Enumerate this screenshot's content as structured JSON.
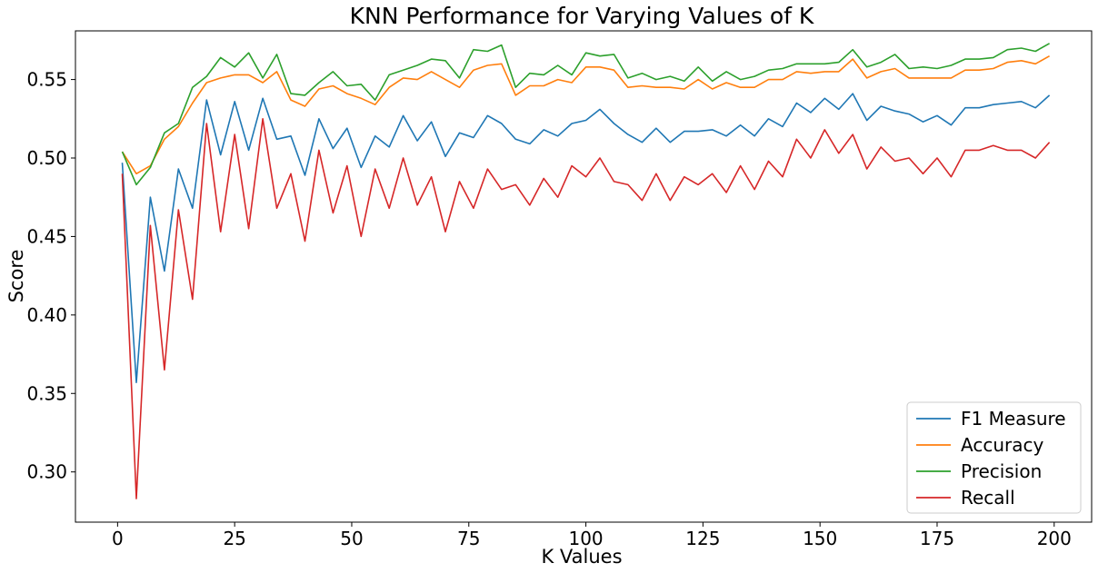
{
  "chart_data": {
    "type": "line",
    "title": "KNN Performance for Varying Values of K",
    "xlabel": "K Values",
    "ylabel": "Score",
    "xlim": [
      -9,
      208
    ],
    "ylim": [
      0.268,
      0.581
    ],
    "xticks": [
      0,
      25,
      50,
      75,
      100,
      125,
      150,
      175,
      200
    ],
    "yticks": [
      0.3,
      0.35,
      0.4,
      0.45,
      0.5,
      0.55
    ],
    "x": [
      1,
      4,
      7,
      10,
      13,
      16,
      19,
      22,
      25,
      28,
      31,
      34,
      37,
      40,
      43,
      46,
      49,
      52,
      55,
      58,
      61,
      64,
      67,
      70,
      73,
      76,
      79,
      82,
      85,
      88,
      91,
      94,
      97,
      100,
      103,
      106,
      109,
      112,
      115,
      118,
      121,
      124,
      127,
      130,
      133,
      136,
      139,
      142,
      145,
      148,
      151,
      154,
      157,
      160,
      163,
      166,
      169,
      172,
      175,
      178,
      181,
      184,
      187,
      190,
      193,
      196,
      199
    ],
    "legend_position": "lower right",
    "grid": false,
    "series": [
      {
        "name": "F1 Measure",
        "color": "#1f77b4",
        "values": [
          0.497,
          0.357,
          0.475,
          0.428,
          0.493,
          0.468,
          0.537,
          0.502,
          0.536,
          0.505,
          0.538,
          0.512,
          0.514,
          0.489,
          0.525,
          0.506,
          0.519,
          0.494,
          0.514,
          0.507,
          0.527,
          0.511,
          0.523,
          0.501,
          0.516,
          0.513,
          0.527,
          0.522,
          0.512,
          0.509,
          0.518,
          0.514,
          0.522,
          0.524,
          0.531,
          0.522,
          0.515,
          0.51,
          0.519,
          0.51,
          0.517,
          0.517,
          0.518,
          0.514,
          0.521,
          0.514,
          0.525,
          0.52,
          0.535,
          0.529,
          0.538,
          0.531,
          0.541,
          0.524,
          0.533,
          0.53,
          0.528,
          0.523,
          0.527,
          0.521,
          0.532,
          0.532,
          0.534,
          0.535,
          0.536,
          0.532,
          0.54
        ]
      },
      {
        "name": "Accuracy",
        "color": "#ff7f0e",
        "values": [
          0.504,
          0.49,
          0.495,
          0.512,
          0.52,
          0.535,
          0.548,
          0.551,
          0.553,
          0.553,
          0.548,
          0.555,
          0.537,
          0.533,
          0.544,
          0.546,
          0.541,
          0.538,
          0.534,
          0.545,
          0.551,
          0.55,
          0.555,
          0.55,
          0.545,
          0.556,
          0.559,
          0.56,
          0.54,
          0.546,
          0.546,
          0.55,
          0.548,
          0.558,
          0.558,
          0.556,
          0.545,
          0.546,
          0.545,
          0.545,
          0.544,
          0.55,
          0.544,
          0.548,
          0.545,
          0.545,
          0.55,
          0.55,
          0.555,
          0.554,
          0.555,
          0.555,
          0.563,
          0.551,
          0.555,
          0.557,
          0.551,
          0.551,
          0.551,
          0.551,
          0.556,
          0.556,
          0.557,
          0.561,
          0.562,
          0.56,
          0.565
        ]
      },
      {
        "name": "Precision",
        "color": "#2ca02c",
        "values": [
          0.504,
          0.483,
          0.494,
          0.516,
          0.522,
          0.545,
          0.552,
          0.564,
          0.558,
          0.567,
          0.551,
          0.566,
          0.541,
          0.54,
          0.548,
          0.555,
          0.546,
          0.547,
          0.537,
          0.553,
          0.556,
          0.559,
          0.563,
          0.562,
          0.551,
          0.569,
          0.568,
          0.572,
          0.545,
          0.554,
          0.553,
          0.559,
          0.553,
          0.567,
          0.565,
          0.566,
          0.551,
          0.554,
          0.55,
          0.552,
          0.549,
          0.558,
          0.549,
          0.555,
          0.55,
          0.552,
          0.556,
          0.557,
          0.56,
          0.56,
          0.56,
          0.561,
          0.569,
          0.558,
          0.561,
          0.566,
          0.557,
          0.558,
          0.557,
          0.559,
          0.563,
          0.563,
          0.564,
          0.569,
          0.57,
          0.568,
          0.573
        ]
      },
      {
        "name": "Recall",
        "color": "#d62728",
        "values": [
          0.49,
          0.283,
          0.457,
          0.365,
          0.467,
          0.41,
          0.522,
          0.453,
          0.515,
          0.455,
          0.525,
          0.468,
          0.49,
          0.447,
          0.505,
          0.465,
          0.495,
          0.45,
          0.493,
          0.468,
          0.5,
          0.47,
          0.488,
          0.453,
          0.485,
          0.468,
          0.493,
          0.48,
          0.483,
          0.47,
          0.487,
          0.475,
          0.495,
          0.488,
          0.5,
          0.485,
          0.483,
          0.473,
          0.49,
          0.473,
          0.488,
          0.483,
          0.49,
          0.478,
          0.495,
          0.48,
          0.498,
          0.488,
          0.512,
          0.5,
          0.518,
          0.503,
          0.515,
          0.493,
          0.507,
          0.498,
          0.5,
          0.49,
          0.5,
          0.488,
          0.505,
          0.505,
          0.508,
          0.505,
          0.505,
          0.5,
          0.51
        ]
      }
    ]
  }
}
